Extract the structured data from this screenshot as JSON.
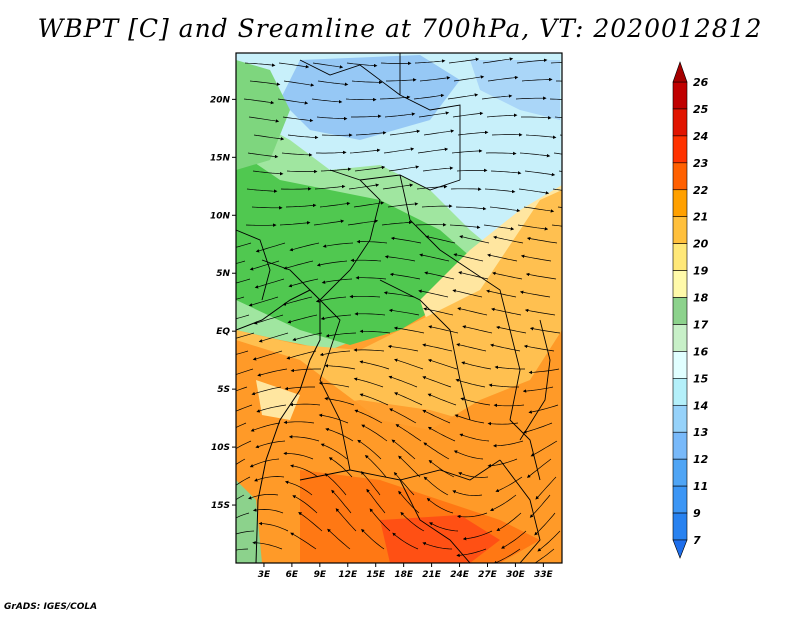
{
  "title": "WBPT [C] and Sreamline at 700hPa, VT: 2020012812",
  "credit": "GrADS: IGES/COLA",
  "map": {
    "lon_range": [
      0,
      35
    ],
    "lat_range": [
      -20,
      24
    ],
    "lon_ticks": [
      "3E",
      "6E",
      "9E",
      "12E",
      "15E",
      "18E",
      "21E",
      "24E",
      "27E",
      "30E",
      "33E"
    ],
    "lon_tick_values": [
      3,
      6,
      9,
      12,
      15,
      18,
      21,
      24,
      27,
      30,
      33
    ],
    "lat_ticks": [
      "20N",
      "15N",
      "10N",
      "5N",
      "EQ",
      "5S",
      "10S",
      "15S"
    ],
    "lat_tick_values": [
      20,
      15,
      10,
      5,
      0,
      -5,
      -10,
      -15
    ]
  },
  "colorbar": {
    "labels": [
      "7",
      "9",
      "11",
      "12",
      "13",
      "14",
      "15",
      "16",
      "17",
      "18",
      "19",
      "20",
      "21",
      "22",
      "23",
      "24",
      "25",
      "26"
    ],
    "colors": [
      "#1e6eeb",
      "#2882f0",
      "#3c96f5",
      "#50a5f5",
      "#78b9fa",
      "#96d2fa",
      "#b4f0fa",
      "#e1ffff",
      "#c8f0c8",
      "#8cd28c",
      "#50be50",
      "#fffaaa",
      "#ffe878",
      "#ffc03c",
      "#ffa000",
      "#ff6000",
      "#ff3200",
      "#e11400",
      "#c00000",
      "#a50000"
    ]
  },
  "field_colors": {
    "blue": "#96c8f5",
    "lightblue": "#c8f0fa",
    "palegreen": "#a0e6a0",
    "green": "#50c850",
    "yellow": "#ffe6a0",
    "lightorange": "#ffc050",
    "orange": "#ff9a28",
    "darkorange": "#ff7814",
    "red": "#ff5014"
  }
}
